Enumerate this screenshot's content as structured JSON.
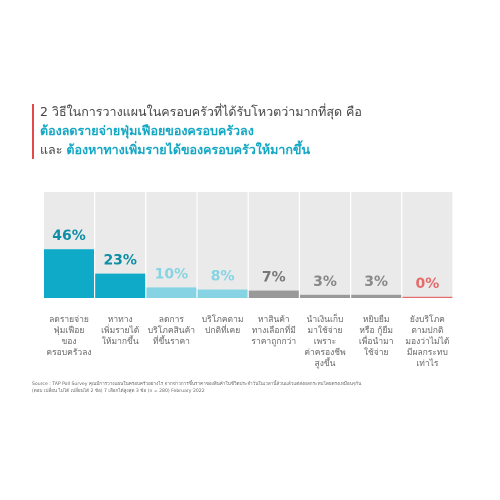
{
  "header": {
    "line1": "2 วิธีในการวางแผนในครอบครัวที่ได้รับโหวตว่ามากที่สุด คือ",
    "line2": "ต้องลดรายจ่ายฟุ่มเฟือยของครอบครัวลง",
    "line3_prefix": "และ",
    "line3_highlight": "ต้องหาทางเพิ่มรายได้ของครอบครัวให้มากขึ้น"
  },
  "colors": {
    "accent": "#e24a4a",
    "title_highlight": "#13a7c4",
    "column_bg": "#eaeaea",
    "bar_teal": "#0eaac7",
    "bar_light_teal": "#86d4e3",
    "bar_gray": "#999999",
    "bar_red": "#e56a6a"
  },
  "chart_data": {
    "type": "bar",
    "title": "",
    "xlabel": "",
    "ylabel": "",
    "ylim": [
      0,
      100
    ],
    "values": [
      46,
      23,
      10,
      8,
      7,
      3,
      3,
      0
    ],
    "data_labels": [
      "46%",
      "23%",
      "10%",
      "8%",
      "7%",
      "3%",
      "3%",
      "0%"
    ],
    "categories": [
      [
        "ลดรายจ่าย",
        "ฟุ่มเฟือย",
        "ของ",
        "ครอบครัวลง"
      ],
      [
        "หาทาง",
        "เพิ่มรายได้",
        "ให้มากขึ้น"
      ],
      [
        "ลดการ",
        "บริโภคสินค้า",
        "ที่ขึ้นราคา"
      ],
      [
        "บริโภคตาม",
        "ปกติที่เคย"
      ],
      [
        "หาสินค้า",
        "ทางเลือกที่มี",
        "ราคาถูกกว่า"
      ],
      [
        "นำเงินเก็บ",
        "มาใช้จ่าย",
        "เพราะ",
        "ค่าครองชีพ",
        "สูงขึ้น"
      ],
      [
        "หยิบยืม",
        "หรือ กู้ยืม",
        "เพื่อนำมา",
        "ใช้จ่าย"
      ],
      [
        "ยังบริโภค",
        "ตามปกติ",
        "มองว่าไม่ได้",
        "มีผลกระทบ",
        "เท่าไร"
      ]
    ],
    "bar_colors": [
      "#0eaac7",
      "#0eaac7",
      "#86d4e3",
      "#86d4e3",
      "#999999",
      "#999999",
      "#999999",
      "#e56a6a"
    ],
    "label_colors": [
      "#0e8ea6",
      "#0e8ea6",
      "#86d4e3",
      "#86d4e3",
      "#777777",
      "#888888",
      "#888888",
      "#e56a6a"
    ],
    "grid": false,
    "legend": "none"
  },
  "footer": {
    "source_line1": "Source : TAP Poll Survey คุณมีการวางแผนในครอบครัวอย่างไร จากข่าวการขึ้นราคาของสินค้าในชีวิตประจำวันในเวลานี้ล้วนแล้วแต่ส่งผลกระทบโดยตรงเหมือนๆกัน",
    "source_line2": "(ตอบ เปลี่ยน ไม่ได้ เปลี่ยนได้ 2 ข้อ) 7 เลือกได้สูงสุด 3 ข้อ (n = 280) February 2022"
  }
}
